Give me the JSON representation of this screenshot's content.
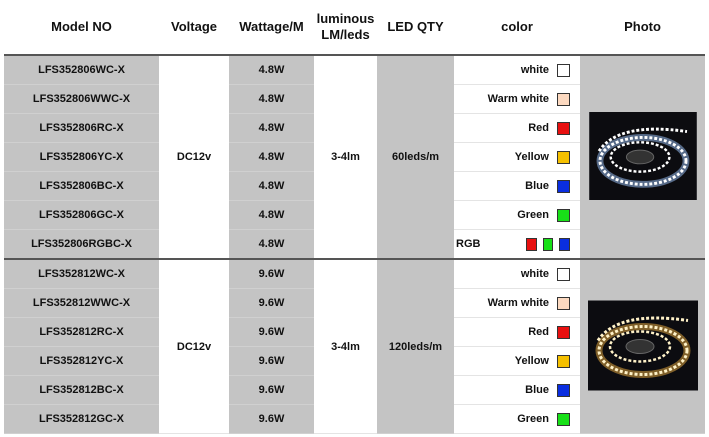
{
  "table": {
    "header": [
      "Model NO",
      "Voltage",
      "Wattage/M",
      "luminous LM/leds",
      "LED QTY",
      "color",
      "Photo"
    ],
    "groups": [
      {
        "voltage": "DC12v",
        "luminous": "3-4lm",
        "led_qty": "60leds/m",
        "photo_tone": "cool",
        "rows": [
          {
            "model": "LFS352806WC-X",
            "wattage": "4.8W",
            "color": "white",
            "swatches": [
              "#ffffff"
            ]
          },
          {
            "model": "LFS352806WWC-X",
            "wattage": "4.8W",
            "color": "Warm white",
            "swatches": [
              "#fcd9c0"
            ]
          },
          {
            "model": "LFS352806RC-X",
            "wattage": "4.8W",
            "color": "Red",
            "swatches": [
              "#e81010"
            ]
          },
          {
            "model": "LFS352806YC-X",
            "wattage": "4.8W",
            "color": "Yellow",
            "swatches": [
              "#f5c000"
            ]
          },
          {
            "model": "LFS352806BC-X",
            "wattage": "4.8W",
            "color": "Blue",
            "swatches": [
              "#0a2ee0"
            ]
          },
          {
            "model": "LFS352806GC-X",
            "wattage": "4.8W",
            "color": "Green",
            "swatches": [
              "#18e018"
            ]
          },
          {
            "model": "LFS352806RGBC-X",
            "wattage": "4.8W",
            "color": "RGB",
            "swatches": [
              "#e81010",
              "#18e018",
              "#0a2ee0"
            ]
          }
        ]
      },
      {
        "voltage": "DC12v",
        "luminous": "3-4lm",
        "led_qty": "120leds/m",
        "photo_tone": "warm",
        "rows": [
          {
            "model": "LFS352812WC-X",
            "wattage": "9.6W",
            "color": "white",
            "swatches": [
              "#ffffff"
            ]
          },
          {
            "model": "LFS352812WWC-X",
            "wattage": "9.6W",
            "color": "Warm white",
            "swatches": [
              "#fcd9c0"
            ]
          },
          {
            "model": "LFS352812RC-X",
            "wattage": "9.6W",
            "color": "Red",
            "swatches": [
              "#e81010"
            ]
          },
          {
            "model": "LFS352812YC-X",
            "wattage": "9.6W",
            "color": "Yellow",
            "swatches": [
              "#f5c000"
            ]
          },
          {
            "model": "LFS352812BC-X",
            "wattage": "9.6W",
            "color": "Blue",
            "swatches": [
              "#0a2ee0"
            ]
          },
          {
            "model": "LFS352812GC-X",
            "wattage": "9.6W",
            "color": "Green",
            "swatches": [
              "#18e018"
            ]
          }
        ]
      }
    ]
  }
}
